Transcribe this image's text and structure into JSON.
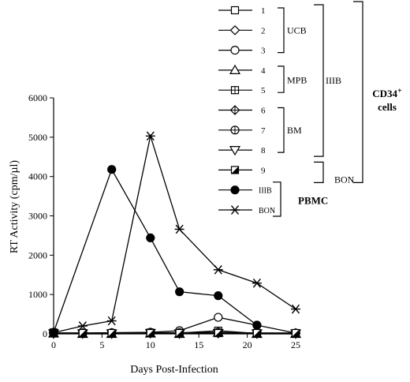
{
  "chart_data": {
    "type": "line",
    "xlabel": "Days Post-Infection",
    "ylabel": "RT Activity (cpm/µl)",
    "xlim": [
      0,
      25
    ],
    "ylim": [
      0,
      6000
    ],
    "x_ticks": [
      0,
      5,
      10,
      15,
      20,
      25
    ],
    "y_ticks": [
      0,
      1000,
      2000,
      3000,
      4000,
      5000,
      6000
    ],
    "grid": false,
    "legend_position": "top-right",
    "series": [
      {
        "name": "1",
        "marker": "open-square",
        "x": [
          0,
          3,
          6,
          10,
          13,
          17,
          21,
          25
        ],
        "y": [
          20,
          10,
          10,
          20,
          10,
          20,
          20,
          10
        ]
      },
      {
        "name": "2",
        "marker": "open-diamond",
        "x": [
          0,
          3,
          6,
          10,
          13,
          17,
          21,
          25
        ],
        "y": [
          20,
          20,
          20,
          20,
          20,
          30,
          20,
          20
        ]
      },
      {
        "name": "3",
        "marker": "open-circle",
        "x": [
          0,
          3,
          6,
          10,
          13,
          17,
          21,
          25
        ],
        "y": [
          20,
          20,
          30,
          40,
          80,
          420,
          220,
          20
        ]
      },
      {
        "name": "4",
        "marker": "open-triangle-up",
        "x": [
          0,
          3,
          6,
          10,
          13,
          17,
          21,
          25
        ],
        "y": [
          10,
          0,
          0,
          10,
          0,
          30,
          0,
          0
        ]
      },
      {
        "name": "5",
        "marker": "square-plus",
        "x": [
          0,
          3,
          6,
          10,
          13,
          17,
          21,
          25
        ],
        "y": [
          20,
          20,
          10,
          30,
          20,
          80,
          10,
          10
        ]
      },
      {
        "name": "6",
        "marker": "diamond-plus",
        "x": [
          0,
          3,
          6,
          10,
          13,
          17,
          21,
          25
        ],
        "y": [
          20,
          20,
          20,
          30,
          20,
          30,
          20,
          20
        ]
      },
      {
        "name": "7",
        "marker": "circle-plus",
        "x": [
          0,
          3,
          6,
          10,
          13,
          17,
          21,
          25
        ],
        "y": [
          20,
          20,
          20,
          30,
          30,
          40,
          20,
          20
        ]
      },
      {
        "name": "8",
        "marker": "open-triangle-down",
        "x": [
          0,
          3,
          6,
          10,
          13,
          17,
          21,
          25
        ],
        "y": [
          10,
          10,
          10,
          20,
          10,
          20,
          10,
          10
        ]
      },
      {
        "name": "9",
        "marker": "half-filled-square",
        "x": [
          0,
          3,
          6,
          10,
          13,
          17,
          21,
          25
        ],
        "y": [
          20,
          20,
          20,
          20,
          20,
          20,
          20,
          20
        ]
      },
      {
        "name": "IIIB",
        "marker": "filled-circle",
        "x": [
          0,
          6,
          10,
          13,
          17,
          21
        ],
        "y": [
          40,
          4180,
          2440,
          1070,
          970,
          220
        ]
      },
      {
        "name": "BON",
        "marker": "asterisk",
        "x": [
          0,
          3,
          6,
          10,
          13,
          17,
          21,
          25
        ],
        "y": [
          30,
          200,
          330,
          5030,
          2660,
          1630,
          1290,
          630
        ]
      }
    ],
    "legend_groups": [
      {
        "label": "UCB",
        "members": [
          "1",
          "2",
          "3"
        ]
      },
      {
        "label": "MPB",
        "members": [
          "4",
          "5"
        ]
      },
      {
        "label": "BM",
        "members": [
          "6",
          "7",
          "8"
        ]
      },
      {
        "label": "IIIB",
        "members": [
          "1",
          "2",
          "3",
          "4",
          "5",
          "6",
          "7",
          "8"
        ]
      },
      {
        "label": "BON",
        "members": [
          "9"
        ]
      },
      {
        "label": "PBMC",
        "members": [
          "IIIB",
          "BON"
        ]
      },
      {
        "label_main": "CD34",
        "label_sup": "+",
        "label_sub": "cells",
        "members": [
          "1",
          "2",
          "3",
          "4",
          "5",
          "6",
          "7",
          "8",
          "9"
        ]
      }
    ]
  }
}
